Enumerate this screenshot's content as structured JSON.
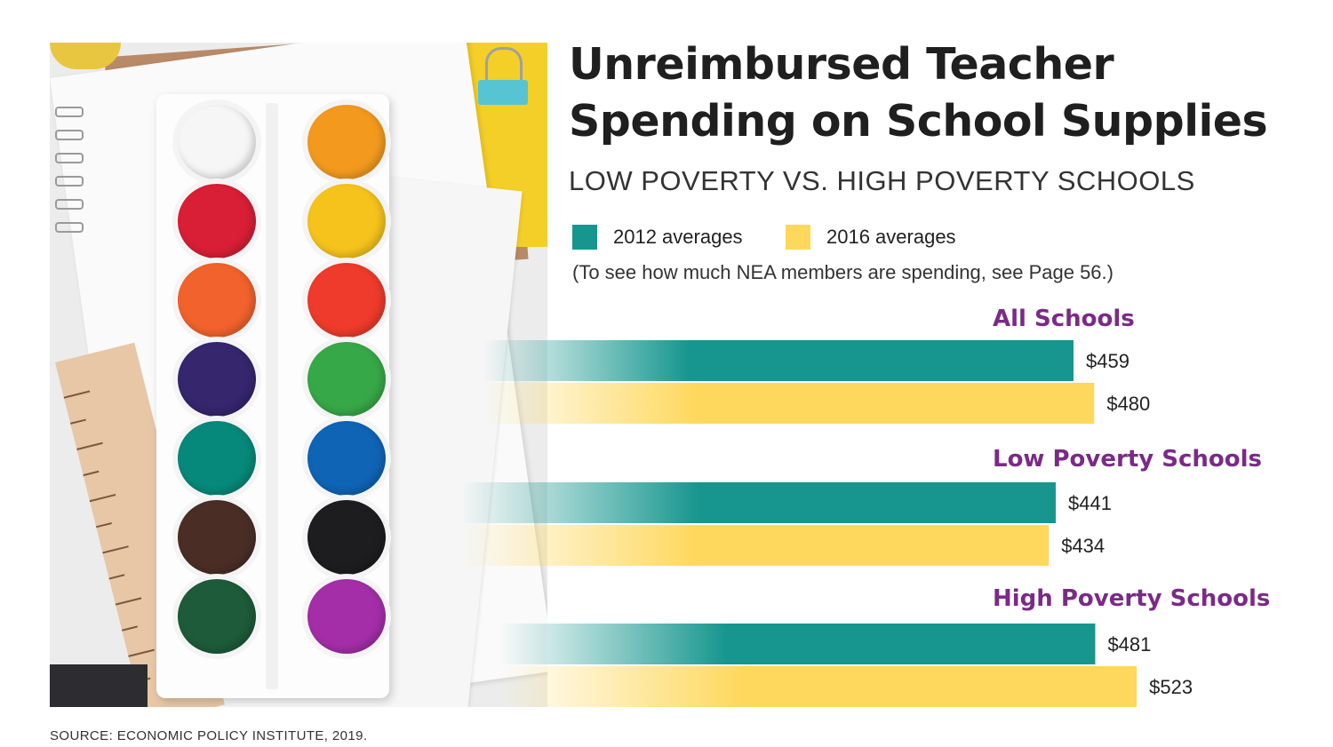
{
  "title_lines": [
    "Unreimbursed Teacher",
    "Spending on School Supplies"
  ],
  "subtitle": "LOW POVERTY VS. HIGH POVERTY SCHOOLS",
  "note": "(To see how much NEA members are spending, see Page 56.)",
  "source": "SOURCE: ECONOMIC POLICY INSTITUTE, 2019.",
  "legend": [
    {
      "label": "2012 averages",
      "color": "#16968e"
    },
    {
      "label": "2016 averages",
      "color": "#fed85d"
    }
  ],
  "chart_data": {
    "type": "bar",
    "orientation": "horizontal",
    "categories": [
      "All Schools",
      "Low Poverty Schools",
      "High Poverty Schools"
    ],
    "series": [
      {
        "name": "2012 averages",
        "color": "#16968e",
        "values": [
          459,
          441,
          481
        ],
        "labels": [
          "$459",
          "$441",
          "$481"
        ]
      },
      {
        "name": "2016 averages",
        "color": "#fed85d",
        "values": [
          480,
          434,
          523
        ],
        "labels": [
          "$480",
          "$434",
          "$523"
        ]
      }
    ],
    "grid": false,
    "legend_position": "top"
  },
  "photo": {
    "description_icon": "watercolor-palette",
    "well_colors": [
      [
        "#f6f6f6",
        "#f39a1e"
      ],
      [
        "#d81f36",
        "#f6c31c"
      ],
      [
        "#f2622d",
        "#ee3b2b"
      ],
      [
        "#35266e",
        "#37a847"
      ],
      [
        "#06897a",
        "#0f64b5"
      ],
      [
        "#4a2e26",
        "#1d1d1f"
      ],
      [
        "#1d5b3a",
        "#a42ea8"
      ]
    ]
  }
}
